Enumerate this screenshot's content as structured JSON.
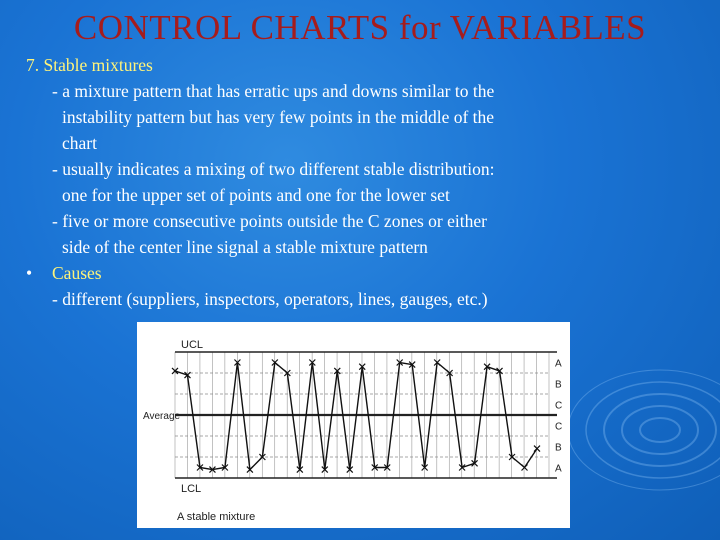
{
  "slide": {
    "title": "CONTROL CHARTS for VARIABLES",
    "heading": "7. Stable mixtures",
    "lines": [
      "- a mixture pattern that has erratic ups and downs similar to the",
      "instability pattern but has very few points in the middle of the",
      "chart",
      "- usually indicates a mixing of two different stable distribution:",
      "one for the upper set of points and one for the lower set",
      "- five or more consecutive points outside the C zones or either",
      "side of the center line signal a stable mixture pattern"
    ],
    "bullet_symbol": "•",
    "bullet_label": "Causes",
    "bullet_detail": "- different (suppliers, inspectors, operators, lines, gauges, etc.)"
  },
  "chart_data": {
    "type": "line",
    "caption": "A stable mixture",
    "limit_labels": {
      "upper": "UCL",
      "center": "Average",
      "lower": "LCL"
    },
    "zone_labels": [
      "A",
      "B",
      "C",
      "C",
      "B",
      "A"
    ],
    "y_scale": {
      "ucl": 3,
      "lcl": -3
    },
    "ylim": [
      -3,
      3
    ],
    "marker": "x",
    "series": [
      {
        "values": [
          2.1,
          1.9,
          -2.5,
          -2.6,
          -2.5,
          2.5,
          -2.6,
          -2.0,
          2.5,
          2.0,
          -2.6,
          2.5,
          -2.6,
          2.1,
          -2.6,
          2.3,
          -2.5,
          -2.5,
          2.5,
          2.4,
          -2.5,
          2.5,
          2.0,
          -2.5,
          -2.3,
          2.3,
          2.1,
          -2.0,
          -2.5,
          -1.6
        ]
      }
    ]
  }
}
